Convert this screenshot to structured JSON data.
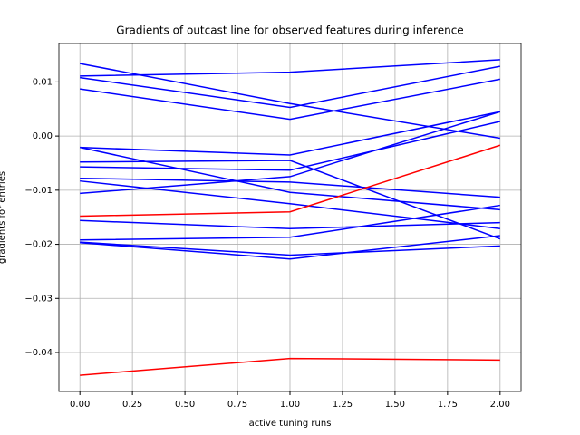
{
  "chart_data": {
    "type": "line",
    "title": "Gradients of outcast line for observed features during inference",
    "x_label": "active tuning runs",
    "y_label": "gradients for entries",
    "x": [
      0,
      1,
      2
    ],
    "series": [
      {
        "color": "#0000ff",
        "values": [
          0.0111,
          0.0118,
          0.0141
        ]
      },
      {
        "color": "#0000ff",
        "values": [
          0.0134,
          0.006,
          -0.0004
        ]
      },
      {
        "color": "#0000ff",
        "values": [
          0.0108,
          0.0053,
          0.0129
        ]
      },
      {
        "color": "#0000ff",
        "values": [
          0.0087,
          0.0031,
          0.0105
        ]
      },
      {
        "color": "#0000ff",
        "values": [
          -0.0021,
          -0.0035,
          0.0045
        ]
      },
      {
        "color": "#0000ff",
        "values": [
          -0.0021,
          -0.0104,
          -0.0136
        ]
      },
      {
        "color": "#0000ff",
        "values": [
          -0.0048,
          -0.0045,
          -0.019
        ]
      },
      {
        "color": "#0000ff",
        "values": [
          -0.0057,
          -0.0063,
          0.0027
        ]
      },
      {
        "color": "#0000ff",
        "values": [
          -0.0078,
          -0.0085,
          -0.0113
        ]
      },
      {
        "color": "#0000ff",
        "values": [
          -0.0083,
          -0.0125,
          -0.0171
        ]
      },
      {
        "color": "#0000ff",
        "values": [
          -0.0106,
          -0.0075,
          0.0045
        ]
      },
      {
        "color": "#0000ff",
        "values": [
          -0.0156,
          -0.0171,
          -0.016
        ]
      },
      {
        "color": "#0000ff",
        "values": [
          -0.0192,
          -0.0187,
          -0.0128
        ]
      },
      {
        "color": "#0000ff",
        "values": [
          -0.0197,
          -0.0227,
          -0.0184
        ]
      },
      {
        "color": "#0000ff",
        "values": [
          -0.0196,
          -0.022,
          -0.0203
        ]
      },
      {
        "color": "#ff0000",
        "values": [
          -0.0148,
          -0.014,
          -0.0017
        ]
      },
      {
        "color": "#ff0000",
        "values": [
          -0.0442,
          -0.0411,
          -0.0414
        ]
      }
    ],
    "xlim": [
      -0.1,
      2.1
    ],
    "xticks": [
      {
        "value": 0,
        "label": "0.00"
      },
      {
        "value": 0.25,
        "label": "0.25"
      },
      {
        "value": 0.5,
        "label": "0.50"
      },
      {
        "value": 0.75,
        "label": "0.75"
      },
      {
        "value": 1,
        "label": "1.00"
      },
      {
        "value": 1.25,
        "label": "1.25"
      },
      {
        "value": 1.5,
        "label": "1.50"
      },
      {
        "value": 1.75,
        "label": "1.75"
      },
      {
        "value": 2,
        "label": "2.00"
      }
    ],
    "ylim": [
      -0.0472,
      0.0171
    ],
    "yticks": [
      {
        "value": -0.04,
        "label": "−0.04"
      },
      {
        "value": -0.03,
        "label": "−0.03"
      },
      {
        "value": -0.02,
        "label": "−0.02"
      },
      {
        "value": -0.01,
        "label": "−0.01"
      },
      {
        "value": 0,
        "label": "0.00"
      },
      0.01
    ],
    "grid": true
  }
}
